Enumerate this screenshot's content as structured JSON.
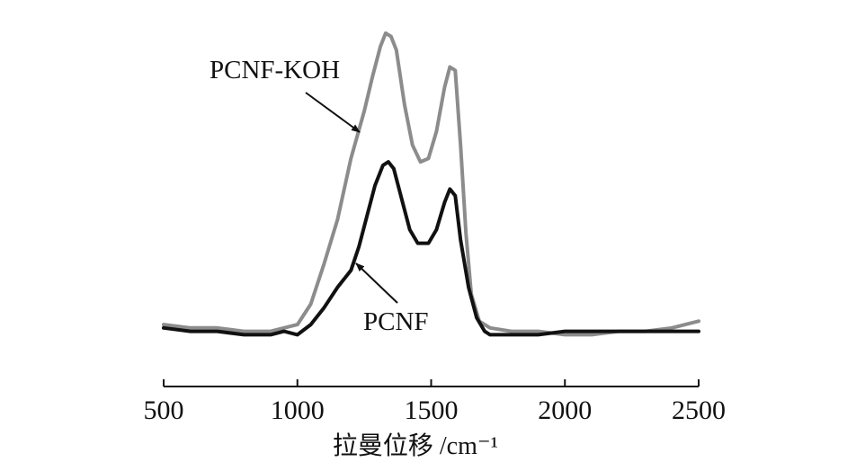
{
  "chart_data": {
    "type": "line",
    "title": "",
    "xlabel": "拉曼位移 /cm⁻¹",
    "ylabel": "",
    "xlim": [
      500,
      2500
    ],
    "ylim": [
      0,
      100
    ],
    "xticks": [
      500,
      1000,
      1500,
      2000,
      2500
    ],
    "xtick_labels": [
      "500",
      "1000",
      "1500",
      "2000",
      "2500"
    ],
    "y_axis_visible": false,
    "grid": false,
    "legend": "none",
    "series": [
      {
        "name": "PCNF-KOH",
        "color": "#8c8c8c",
        "x": [
          500,
          600,
          700,
          800,
          900,
          950,
          1000,
          1050,
          1100,
          1150,
          1200,
          1250,
          1280,
          1310,
          1330,
          1350,
          1370,
          1400,
          1430,
          1460,
          1490,
          1520,
          1550,
          1570,
          1590,
          1610,
          1630,
          1650,
          1680,
          1720,
          1800,
          1900,
          2000,
          2100,
          2200,
          2300,
          2400,
          2500
        ],
        "y": [
          9,
          8,
          8,
          7,
          7,
          8,
          9,
          15,
          27,
          40,
          58,
          72,
          82,
          91,
          95,
          94,
          90,
          74,
          62,
          57,
          58,
          66,
          79,
          85,
          84,
          62,
          36,
          18,
          10,
          8,
          7,
          7,
          6,
          6,
          7,
          7,
          8,
          10
        ]
      },
      {
        "name": "PCNF",
        "color": "#111111",
        "x": [
          500,
          600,
          700,
          800,
          900,
          950,
          1000,
          1050,
          1100,
          1150,
          1200,
          1230,
          1260,
          1290,
          1320,
          1340,
          1360,
          1390,
          1420,
          1450,
          1490,
          1520,
          1550,
          1570,
          1590,
          1610,
          1640,
          1670,
          1700,
          1720,
          1800,
          1900,
          2000,
          2100,
          2200,
          2300,
          2400,
          2500
        ],
        "y": [
          8,
          7,
          7,
          6,
          6,
          7,
          6,
          9,
          14,
          20,
          25,
          32,
          41,
          50,
          56,
          57,
          55,
          46,
          37,
          33,
          33,
          37,
          45,
          49,
          47,
          34,
          20,
          11,
          7,
          6,
          6,
          6,
          7,
          7,
          7,
          7,
          7,
          7
        ]
      }
    ],
    "annotations": [
      {
        "text": "PCNF-KOH",
        "series": "PCNF-KOH"
      },
      {
        "text": "PCNF",
        "series": "PCNF"
      }
    ]
  }
}
